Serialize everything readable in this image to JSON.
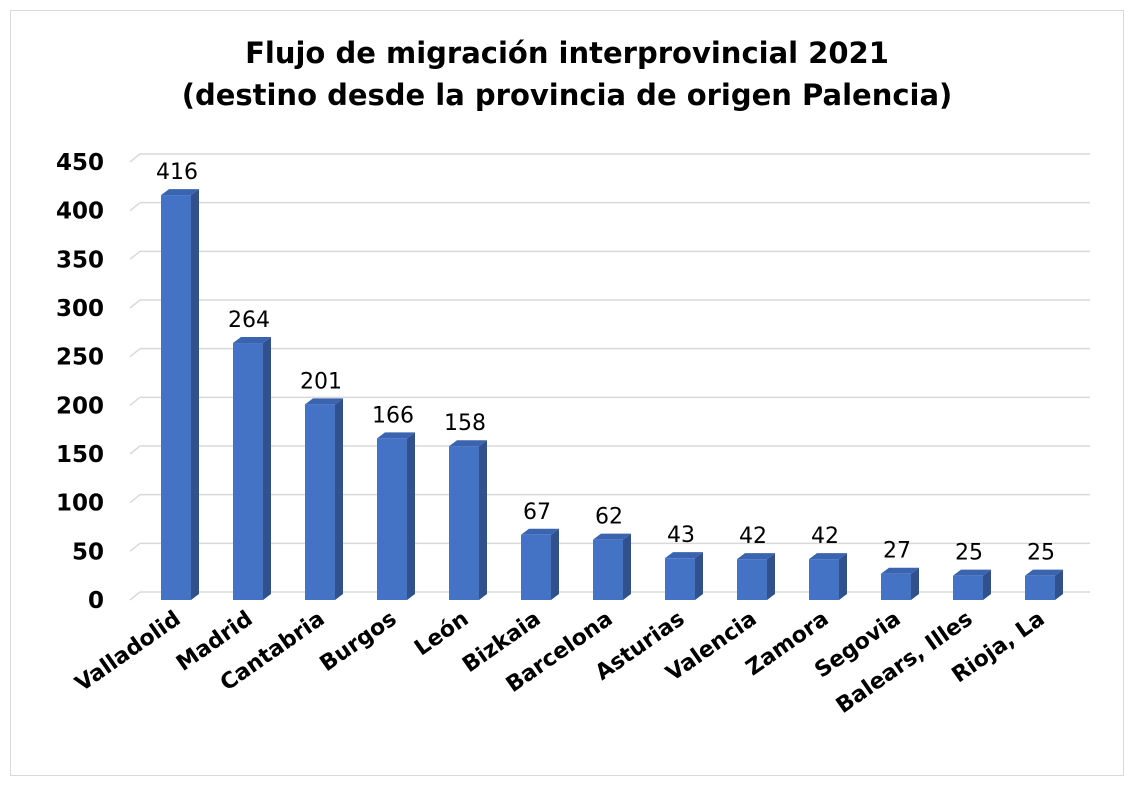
{
  "chart_data": {
    "type": "bar",
    "title": "Flujo de migración interprovincial 2021",
    "subtitle": "(destino desde la provincia de origen Palencia)",
    "xlabel": "",
    "ylabel": "",
    "categories": [
      "Valladolid",
      "Madrid",
      "Cantabria",
      "Burgos",
      "León",
      "Bizkaia",
      "Barcelona",
      "Asturias",
      "Valencia",
      "Zamora",
      "Segovia",
      "Balears, Illes",
      "Rioja, La"
    ],
    "values": [
      416,
      264,
      201,
      166,
      158,
      67,
      62,
      43,
      42,
      42,
      27,
      25,
      25
    ],
    "ylim": [
      0,
      450
    ],
    "yticks": [
      "0",
      "50",
      "100",
      "150",
      "200",
      "250",
      "300",
      "350",
      "400",
      "450"
    ],
    "grid": true,
    "legend": "none",
    "style": "3d-column",
    "colors": {
      "bar_front": "#4472c4",
      "bar_side": "#2f528f",
      "bar_top": "#3a64b0",
      "grid": "#d9d9d9"
    }
  }
}
